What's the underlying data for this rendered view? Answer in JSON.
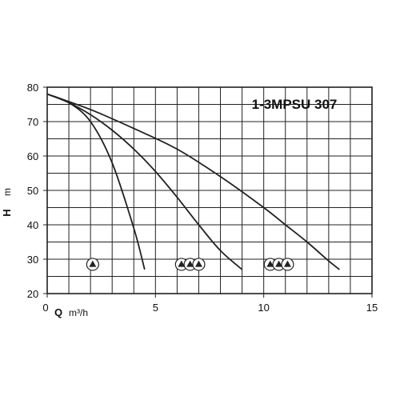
{
  "chart_data": {
    "type": "line",
    "title": "1-3MPSU 307",
    "xlabel": "Q",
    "xlabel_unit": "m³/h",
    "ylabel": "H",
    "ylabel_unit": "m",
    "xlim": [
      0,
      15
    ],
    "ylim": [
      20,
      80
    ],
    "x_ticks": [
      0,
      5,
      10,
      15
    ],
    "x_grid_step": 1,
    "y_ticks": [
      20,
      30,
      40,
      50,
      60,
      70,
      80
    ],
    "y_grid_step": 5,
    "grid": true,
    "series": [
      {
        "pump_count": 1,
        "points": [
          [
            0,
            78
          ],
          [
            1,
            75.5
          ],
          [
            2,
            70
          ],
          [
            3,
            58
          ],
          [
            4,
            39
          ],
          [
            4.5,
            27
          ]
        ]
      },
      {
        "pump_count": 2,
        "points": [
          [
            0,
            78
          ],
          [
            1,
            75.5
          ],
          [
            2,
            72
          ],
          [
            3,
            67.5
          ],
          [
            4,
            62
          ],
          [
            5,
            55.5
          ],
          [
            6,
            48
          ],
          [
            7,
            40
          ],
          [
            8,
            32.5
          ],
          [
            9,
            27
          ]
        ]
      },
      {
        "pump_count": 3,
        "points": [
          [
            0,
            78
          ],
          [
            2,
            73.5
          ],
          [
            4,
            68
          ],
          [
            6,
            62
          ],
          [
            8,
            54
          ],
          [
            10,
            45
          ],
          [
            11,
            40
          ],
          [
            12,
            35
          ],
          [
            13,
            29.5
          ],
          [
            13.5,
            27
          ]
        ]
      }
    ],
    "pump_symbol_groups": [
      {
        "count": 1,
        "x": [
          2.1
        ],
        "y": 28.5
      },
      {
        "count": 3,
        "x": [
          6.2,
          6.6,
          7.0
        ],
        "y": 28.5
      },
      {
        "count": 3,
        "x": [
          10.3,
          10.7,
          11.1
        ],
        "y": 28.5
      }
    ]
  }
}
